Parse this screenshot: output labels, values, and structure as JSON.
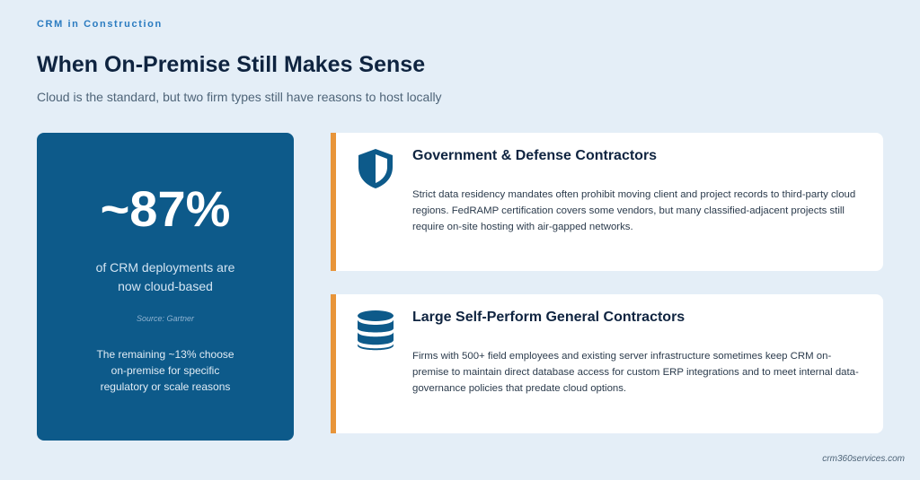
{
  "header": {
    "eyebrow": "CRM in Construction",
    "title": "When On-Premise Still Makes Sense",
    "subtitle": "Cloud is the standard, but two firm types still have reasons to host locally"
  },
  "stat": {
    "value": "~87%",
    "caption": "of CRM deployments are now cloud-based",
    "source": "Source: Gartner",
    "note": "The remaining ~13% choose on-premise for specific regulatory or scale reasons"
  },
  "cards": [
    {
      "title": "Government & Defense Contractors",
      "body": "Strict data residency mandates often prohibit moving client and project records to third-party cloud regions. FedRAMP certification covers some vendors, but many classified-adjacent projects still require on-site hosting with air-gapped networks."
    },
    {
      "title": "Large Self-Perform General Contractors",
      "body": "Firms with 500+ field employees and existing server infrastructure sometimes keep CRM on-premise to maintain direct database access for custom ERP integrations and to meet internal data-governance policies that predate cloud options."
    }
  ],
  "footer": "crm360services.com"
}
